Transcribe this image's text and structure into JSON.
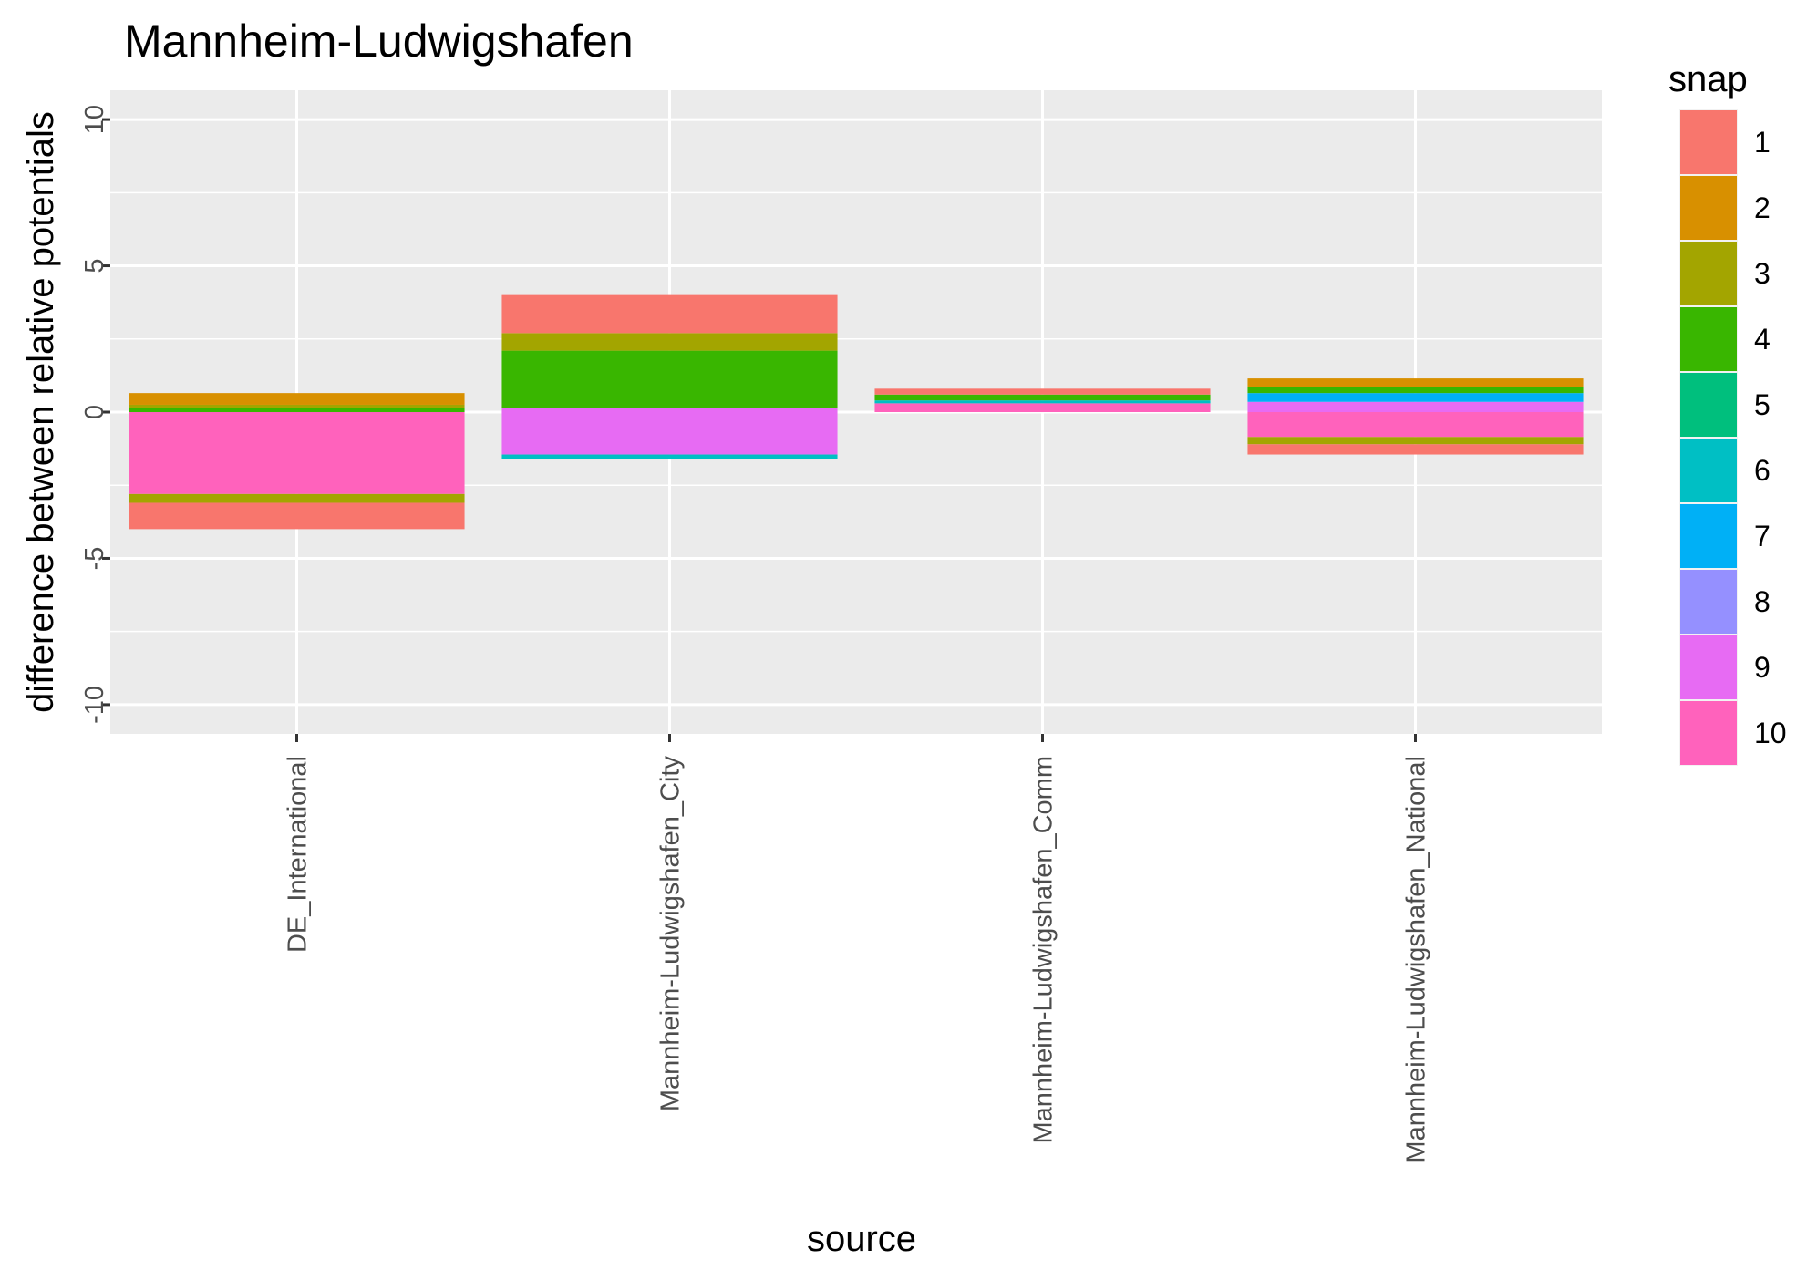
{
  "chart_data": {
    "type": "bar",
    "stacked": true,
    "title": "Mannheim-Ludwigshafen",
    "xlabel": "source",
    "ylabel": "difference between relative potentials",
    "categories": [
      "DE_International",
      "Mannheim-Ludwigshafen_City",
      "Mannheim-Ludwigshafen_Comm",
      "Mannheim-Ludwigshafen_National"
    ],
    "ylim": [
      -11,
      11
    ],
    "yticks": [
      -10,
      -5,
      0,
      5,
      10
    ],
    "ytick_labels": [
      "-10",
      "-5",
      "0",
      "5",
      "10"
    ],
    "grid": true,
    "legend": {
      "title": "snap",
      "position": "right",
      "entries": [
        "1",
        "2",
        "3",
        "4",
        "5",
        "6",
        "7",
        "8",
        "9",
        "10"
      ]
    },
    "series_colors": {
      "1": "#F8766D",
      "2": "#D89000",
      "3": "#A3A500",
      "4": "#39B600",
      "5": "#00BF7D",
      "6": "#00BFC4",
      "7": "#00B0F6",
      "8": "#9590FF",
      "9": "#E76BF3",
      "10": "#FF62BC"
    },
    "segments": [
      {
        "category": "DE_International",
        "snap": "10",
        "from": -2.8,
        "to": 0
      },
      {
        "category": "DE_International",
        "snap": "3",
        "from": -3.1,
        "to": -2.8
      },
      {
        "category": "DE_International",
        "snap": "1",
        "from": -4.0,
        "to": -3.1
      },
      {
        "category": "DE_International",
        "snap": "4",
        "from": 0,
        "to": 0.15
      },
      {
        "category": "DE_International",
        "snap": "3",
        "from": 0.15,
        "to": 0.25
      },
      {
        "category": "DE_International",
        "snap": "2",
        "from": 0.25,
        "to": 0.65
      },
      {
        "category": "Mannheim-Ludwigshafen_City",
        "snap": "9",
        "from": 0,
        "to": 0.15
      },
      {
        "category": "Mannheim-Ludwigshafen_City",
        "snap": "4",
        "from": 0.15,
        "to": 2.1
      },
      {
        "category": "Mannheim-Ludwigshafen_City",
        "snap": "3",
        "from": 2.1,
        "to": 2.7
      },
      {
        "category": "Mannheim-Ludwigshafen_City",
        "snap": "1",
        "from": 2.7,
        "to": 4.0
      },
      {
        "category": "Mannheim-Ludwigshafen_City",
        "snap": "9",
        "from": -1.45,
        "to": 0
      },
      {
        "category": "Mannheim-Ludwigshafen_City",
        "snap": "6",
        "from": -1.6,
        "to": -1.45
      },
      {
        "category": "Mannheim-Ludwigshafen_Comm",
        "snap": "10",
        "from": 0,
        "to": 0.3
      },
      {
        "category": "Mannheim-Ludwigshafen_Comm",
        "snap": "6",
        "from": 0.3,
        "to": 0.4
      },
      {
        "category": "Mannheim-Ludwigshafen_Comm",
        "snap": "4",
        "from": 0.4,
        "to": 0.6
      },
      {
        "category": "Mannheim-Ludwigshafen_Comm",
        "snap": "1",
        "from": 0.6,
        "to": 0.8
      },
      {
        "category": "Mannheim-Ludwigshafen_National",
        "snap": "9",
        "from": 0,
        "to": 0.35
      },
      {
        "category": "Mannheim-Ludwigshafen_National",
        "snap": "7",
        "from": 0.35,
        "to": 0.65
      },
      {
        "category": "Mannheim-Ludwigshafen_National",
        "snap": "4",
        "from": 0.65,
        "to": 0.85
      },
      {
        "category": "Mannheim-Ludwigshafen_National",
        "snap": "2",
        "from": 0.85,
        "to": 1.15
      },
      {
        "category": "Mannheim-Ludwigshafen_National",
        "snap": "10",
        "from": -0.85,
        "to": 0
      },
      {
        "category": "Mannheim-Ludwigshafen_National",
        "snap": "3",
        "from": -1.1,
        "to": -0.85
      },
      {
        "category": "Mannheim-Ludwigshafen_National",
        "snap": "1",
        "from": -1.45,
        "to": -1.1
      }
    ]
  }
}
